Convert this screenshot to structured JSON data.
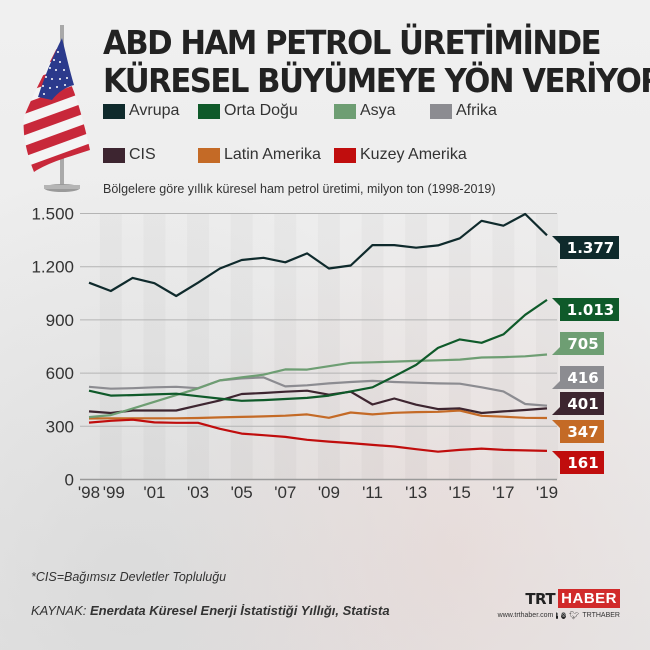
{
  "header": {
    "title_line1": "ABD HAM PETROL ÜRETİMİNDE",
    "title_line2": "KÜRESEL BÜYÜMEYE YÖN VERİYOR",
    "subtitle": "Bölgelere göre yıllık küresel ham petrol üretimi, milyon ton (1998-2019)"
  },
  "legend": [
    {
      "label": "Avrupa",
      "color": "#0f2a2c"
    },
    {
      "label": "Orta Doğu",
      "color": "#0f5a2a"
    },
    {
      "label": "Asya",
      "color": "#6e9e73"
    },
    {
      "label": "Afrika",
      "color": "#8c8c91"
    },
    {
      "label": "CIS",
      "color": "#3d2530"
    },
    {
      "label": "Latin Amerika",
      "color": "#c46a26"
    },
    {
      "label": "Kuzey Amerika",
      "color": "#c00d0d"
    }
  ],
  "chart_data": {
    "type": "line",
    "title": "ABD HAM PETROL ÜRETİMİNDE KÜRESEL BÜYÜMEYE YÖN VERİYOR",
    "subtitle": "Bölgelere göre yıllık küresel ham petrol üretimi, milyon ton (1998-2019)",
    "xlabel": "",
    "ylabel": "milyon ton",
    "x": [
      1998,
      1999,
      2000,
      2001,
      2002,
      2003,
      2004,
      2005,
      2006,
      2007,
      2008,
      2009,
      2010,
      2011,
      2012,
      2013,
      2014,
      2015,
      2016,
      2017,
      2018,
      2019
    ],
    "x_tick_labels": [
      "'98",
      "'99",
      "'01",
      "'03",
      "'05",
      "'07",
      "'09",
      "'11",
      "'13",
      "'15",
      "'17",
      "'19"
    ],
    "x_tick_years": [
      1998,
      1999,
      2001,
      2003,
      2005,
      2007,
      2009,
      2011,
      2013,
      2015,
      2017,
      2019
    ],
    "ylim": [
      0,
      1500
    ],
    "y_ticks": [
      0,
      300,
      600,
      900,
      1200,
      1500
    ],
    "y_tick_labels": [
      "0",
      "300",
      "600",
      "900",
      "1.200",
      "1.500"
    ],
    "grid": true,
    "legend_position": "top",
    "series": [
      {
        "name": "Avrupa",
        "color": "#0f2a2c",
        "end_label": "1.377",
        "values": [
          1110,
          1063,
          1137,
          1107,
          1035,
          1110,
          1190,
          1238,
          1250,
          1225,
          1275,
          1190,
          1207,
          1322,
          1322,
          1307,
          1320,
          1360,
          1459,
          1431,
          1497,
          1377
        ]
      },
      {
        "name": "Orta Doğu",
        "color": "#0f5a2a",
        "end_label": "1.013",
        "values": [
          501,
          473,
          476,
          480,
          484,
          470,
          456,
          444,
          448,
          454,
          460,
          473,
          497,
          520,
          582,
          646,
          742,
          790,
          771,
          818,
          929,
          1013
        ]
      },
      {
        "name": "Asya",
        "color": "#6e9e73",
        "end_label": "705",
        "values": [
          352,
          363,
          400,
          438,
          476,
          514,
          559,
          576,
          591,
          621,
          620,
          639,
          658,
          661,
          665,
          669,
          672,
          676,
          688,
          690,
          695,
          705
        ]
      },
      {
        "name": "Afrika",
        "color": "#8c8c91",
        "end_label": "416",
        "values": [
          523,
          512,
          515,
          520,
          523,
          515,
          559,
          570,
          576,
          525,
          531,
          542,
          550,
          556,
          550,
          546,
          542,
          540,
          520,
          497,
          426,
          416
        ]
      },
      {
        "name": "CIS",
        "color": "#3d2530",
        "end_label": "401",
        "values": [
          384,
          375,
          389,
          389,
          389,
          418,
          446,
          482,
          488,
          495,
          501,
          478,
          495,
          423,
          457,
          422,
          397,
          401,
          375,
          384,
          392,
          401
        ]
      },
      {
        "name": "Latin Amerika",
        "color": "#c46a26",
        "end_label": "347",
        "values": [
          344,
          345,
          345,
          345,
          345,
          347,
          350,
          353,
          356,
          360,
          367,
          348,
          378,
          367,
          376,
          380,
          382,
          389,
          359,
          354,
          348,
          347
        ]
      },
      {
        "name": "Kuzey Amerika",
        "color": "#c00d0d",
        "end_label": "161",
        "values": [
          321,
          331,
          337,
          322,
          320,
          320,
          286,
          259,
          250,
          240,
          224,
          214,
          205,
          195,
          186,
          171,
          157,
          167,
          174,
          167,
          164,
          161
        ]
      }
    ],
    "annotations": [
      "1.377",
      "1.013",
      "705",
      "416",
      "401",
      "347",
      "161"
    ]
  },
  "footer": {
    "footnote": "*CIS=Bağımsız Devletler Topluluğu",
    "source_prefix": "KAYNAK:",
    "source_text": "Enerdata Küresel Enerji İstatistiği Yıllığı, Statista",
    "brand_trt": "TRT",
    "brand_haber": "HABER",
    "website": "www.trthaber.com",
    "social_handle": "TRTHABER"
  }
}
